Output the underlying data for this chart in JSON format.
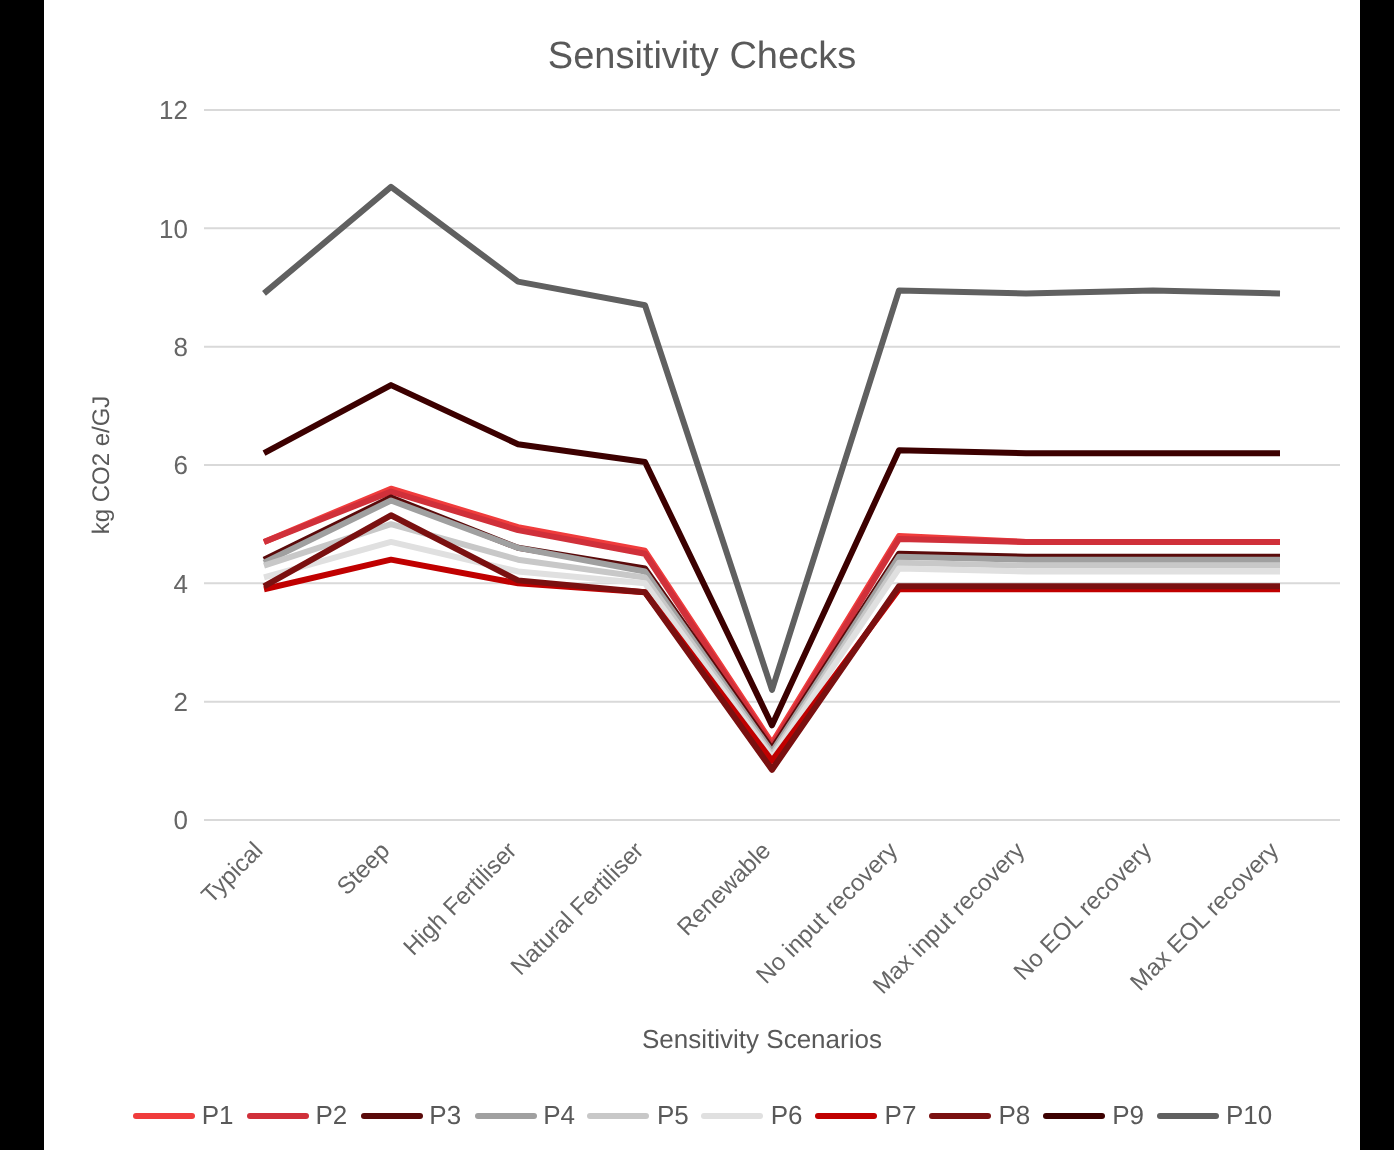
{
  "chart_data": {
    "type": "line",
    "title": "Sensitivity Checks",
    "xlabel": "Sensitivity Scenarios",
    "ylabel": "kg CO2 e/GJ",
    "categories": [
      "Typical",
      "Steep",
      "High Fertiliser",
      "Natural Fertiliser",
      "Renewable",
      "No input recovery",
      "Max input recovery",
      "No EOL recovery",
      "Max EOL recovery"
    ],
    "series": [
      {
        "name": "P1",
        "color": "#f03c3c",
        "values": [
          4.7,
          5.6,
          4.95,
          4.55,
          1.3,
          4.8,
          4.7,
          4.7,
          4.7
        ]
      },
      {
        "name": "P2",
        "color": "#d0303a",
        "values": [
          4.7,
          5.55,
          4.9,
          4.5,
          1.25,
          4.75,
          4.7,
          4.7,
          4.7
        ]
      },
      {
        "name": "P3",
        "color": "#5a0a0a",
        "values": [
          4.4,
          5.45,
          4.6,
          4.25,
          1.2,
          4.5,
          4.45,
          4.45,
          4.45
        ]
      },
      {
        "name": "P4",
        "color": "#a0a0a0",
        "values": [
          4.35,
          5.4,
          4.6,
          4.2,
          1.15,
          4.45,
          4.4,
          4.4,
          4.4
        ]
      },
      {
        "name": "P5",
        "color": "#c8c8c8",
        "values": [
          4.3,
          5.0,
          4.4,
          4.1,
          1.1,
          4.35,
          4.3,
          4.3,
          4.3
        ]
      },
      {
        "name": "P6",
        "color": "#e0e0e0",
        "values": [
          4.1,
          4.7,
          4.2,
          4.0,
          1.05,
          4.25,
          4.2,
          4.2,
          4.2
        ]
      },
      {
        "name": "P7",
        "color": "#c00000",
        "values": [
          3.9,
          4.4,
          4.0,
          3.85,
          1.0,
          3.9,
          3.9,
          3.9,
          3.9
        ]
      },
      {
        "name": "P8",
        "color": "#7a1010",
        "values": [
          3.95,
          5.15,
          4.05,
          3.85,
          0.85,
          3.95,
          3.95,
          3.95,
          3.95
        ]
      },
      {
        "name": "P9",
        "color": "#3c0000",
        "values": [
          6.2,
          7.35,
          6.35,
          6.05,
          1.6,
          6.25,
          6.2,
          6.2,
          6.2
        ]
      },
      {
        "name": "P10",
        "color": "#606060",
        "values": [
          8.9,
          10.7,
          9.1,
          8.7,
          2.2,
          8.95,
          8.9,
          8.95,
          8.9
        ]
      }
    ],
    "ylim": [
      0,
      12
    ],
    "yticks": [
      0,
      2,
      4,
      6,
      8,
      10,
      12
    ],
    "grid": "y",
    "legend": "bottom",
    "marker": "none",
    "line_style": "solid"
  }
}
